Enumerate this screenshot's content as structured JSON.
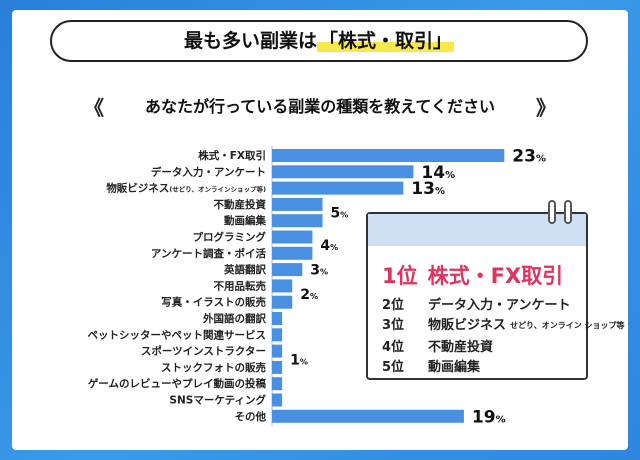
{
  "header": {
    "title_prefix": "最も多い副業は",
    "title_highlight": "「株式・取引」",
    "subtitle": "あなたが行っている副業の種類を教えてください",
    "chevron_left": "《",
    "chevron_right": "》"
  },
  "colors": {
    "bar": "#4a90e2",
    "accent": "#e0335e",
    "background": "#2f86e0"
  },
  "chart_data": {
    "type": "bar",
    "orientation": "horizontal",
    "categories": [
      "株式・FX取引",
      "データ入力・アンケート",
      "物販ビジネス(せどり、オンラインショップ等)",
      "不動産投資",
      "動画編集",
      "プログラミング",
      "アンケート調査・ポイ活",
      "英語翻訳",
      "不用品転売",
      "写真・イラストの販売",
      "外国語の翻訳",
      "ペットシッターやペット関連サービス",
      "スポーツインストラクター",
      "ストックフォトの販売",
      "ゲームのレビューやプレイ動画の投稿",
      "SNSマーケティング",
      "その他"
    ],
    "values": [
      23,
      14,
      13,
      5,
      5,
      4,
      4,
      3,
      2,
      2,
      1,
      1,
      1,
      1,
      1,
      1,
      19
    ],
    "unit": "%",
    "data_labels": [
      {
        "text": "23",
        "rows": [
          0
        ]
      },
      {
        "text": "14",
        "rows": [
          1
        ]
      },
      {
        "text": "13",
        "rows": [
          2
        ]
      },
      {
        "text": "5",
        "rows": [
          3,
          4
        ]
      },
      {
        "text": "4",
        "rows": [
          5,
          6
        ]
      },
      {
        "text": "3",
        "rows": [
          7
        ]
      },
      {
        "text": "2",
        "rows": [
          8,
          9
        ]
      },
      {
        "text": "1",
        "rows": [
          10,
          11,
          12,
          13,
          14,
          15
        ]
      },
      {
        "text": "19",
        "rows": [
          16
        ]
      }
    ],
    "xlim": [
      0,
      25
    ]
  },
  "ranking": {
    "first": {
      "pos": "1位",
      "label": "株式・FX取引"
    },
    "rows": [
      {
        "pos": "2位",
        "label": "データ入力・アンケート",
        "note": ""
      },
      {
        "pos": "3位",
        "label": "物販ビジネス",
        "note": "せどり、オンライン ショップ等"
      },
      {
        "pos": "4位",
        "label": "不動産投資",
        "note": ""
      },
      {
        "pos": "5位",
        "label": "動画編集",
        "note": ""
      }
    ]
  }
}
